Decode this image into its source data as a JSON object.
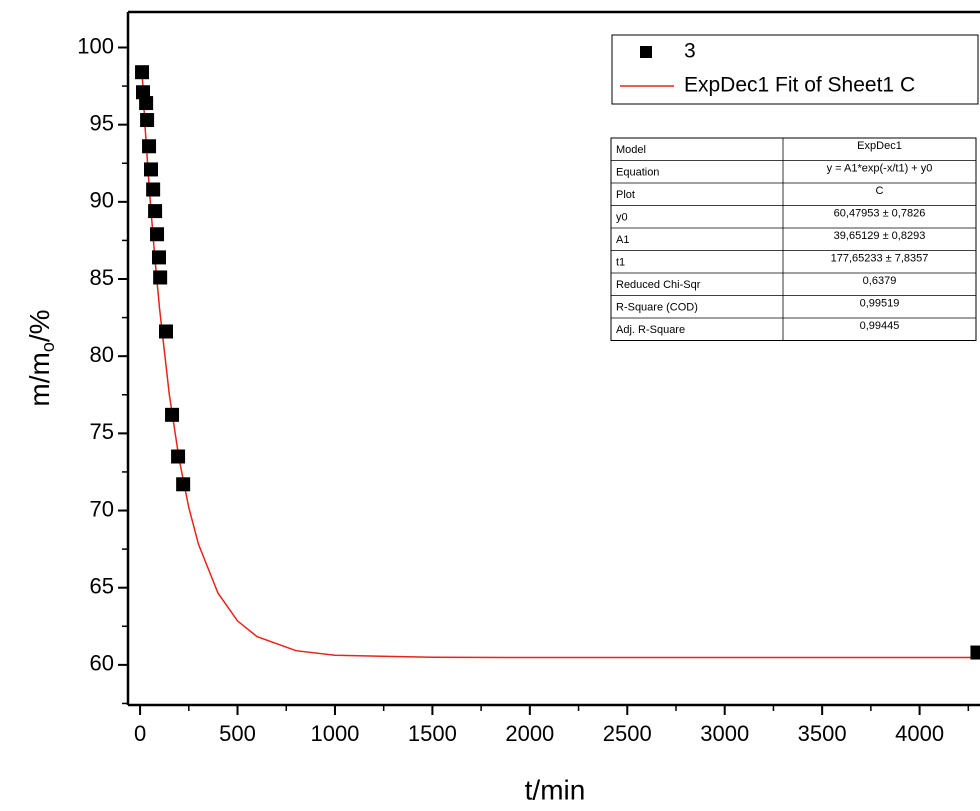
{
  "chart_data": {
    "type": "scatter",
    "x_label": "t/min",
    "y_label": {
      "main": "m/m",
      "sub": "o",
      "tail": "/%"
    },
    "xlim": [
      -62,
      4310
    ],
    "ylim": [
      57.4,
      102.3
    ],
    "xticks": [
      0,
      500,
      1000,
      1500,
      2000,
      2500,
      3000,
      3500,
      4000
    ],
    "yticks": [
      60,
      65,
      70,
      75,
      80,
      85,
      90,
      95,
      100
    ],
    "x_minor_step": 250,
    "y_minor_step": 2.5,
    "legend": "top right",
    "series": [
      {
        "name": "3",
        "type": "scatter",
        "color": "#000000",
        "x": [
          10,
          15,
          31,
          36,
          46,
          56,
          67,
          77,
          87,
          97,
          103,
          133,
          164,
          195,
          221,
          4297
        ],
        "values": [
          98.4,
          97.1,
          96.4,
          95.3,
          93.6,
          92.1,
          90.8,
          89.4,
          87.9,
          86.4,
          85.1,
          81.6,
          76.2,
          73.5,
          71.7,
          60.8
        ]
      },
      {
        "name": "ExpDec1 Fit of Sheet1 C",
        "type": "line",
        "color": "#e8231c",
        "x": [
          10,
          25,
          50,
          75,
          100,
          150,
          200,
          250,
          300,
          400,
          500,
          600,
          800,
          1000,
          1500,
          2000,
          3000,
          4310
        ],
        "values": [
          98.5,
          94.93,
          90.41,
          86.48,
          83.06,
          77.52,
          73.34,
          70.19,
          67.81,
          64.65,
          62.85,
          61.83,
          60.92,
          60.62,
          60.49,
          60.48,
          60.48,
          60.48
        ]
      }
    ],
    "fit_table": {
      "rows": [
        [
          "Model",
          "ExpDec1"
        ],
        [
          "Equation",
          "y = A1*exp(-x/t1) + y0"
        ],
        [
          "Plot",
          "C"
        ],
        [
          "y0",
          "60,47953 ± 0,7826"
        ],
        [
          "A1",
          "39,65129 ± 0,8293"
        ],
        [
          "t1",
          "177,65233 ± 7,8357"
        ],
        [
          "Reduced Chi-Sqr",
          "0,6379"
        ],
        [
          "R-Square (COD)",
          "0,99519"
        ],
        [
          "Adj. R-Square",
          "0,99445"
        ]
      ]
    }
  }
}
